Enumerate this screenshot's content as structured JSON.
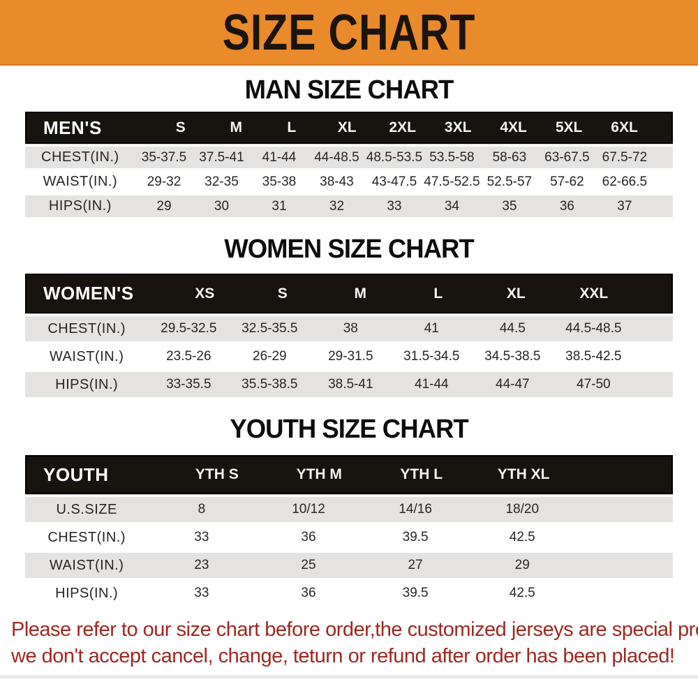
{
  "banner": {
    "title": "SIZE CHART"
  },
  "men": {
    "heading": "MAN SIZE CHART",
    "header_label": "MEN'S",
    "columns": [
      "S",
      "M",
      "L",
      "XL",
      "2XL",
      "3XL",
      "4XL",
      "5XL",
      "6XL"
    ],
    "rows": [
      {
        "label": "CHEST(IN.)",
        "values": [
          "35-37.5",
          "37.5-41",
          "41-44",
          "44-48.5",
          "48.5-53.5",
          "53.5-58",
          "58-63",
          "63-67.5",
          "67.5-72"
        ]
      },
      {
        "label": "WAIST(IN.)",
        "values": [
          "29-32",
          "32-35",
          "35-38",
          "38-43",
          "43-47.5",
          "47.5-52.5",
          "52.5-57",
          "57-62",
          "62-66.5"
        ]
      },
      {
        "label": "HIPS(IN.)",
        "values": [
          "29",
          "30",
          "31",
          "32",
          "33",
          "34",
          "35",
          "36",
          "37"
        ]
      }
    ]
  },
  "women": {
    "heading": "WOMEN SIZE CHART",
    "header_label": "WOMEN'S",
    "columns": [
      "XS",
      "S",
      "M",
      "L",
      "XL",
      "XXL"
    ],
    "rows": [
      {
        "label": "CHEST(IN.)",
        "values": [
          "29.5-32.5",
          "32.5-35.5",
          "38",
          "41",
          "44.5",
          "44.5-48.5"
        ]
      },
      {
        "label": "WAIST(IN.)",
        "values": [
          "23.5-26",
          "26-29",
          "29-31.5",
          "31.5-34.5",
          "34.5-38.5",
          "38.5-42.5"
        ]
      },
      {
        "label": "HIPS(IN.)",
        "values": [
          "33-35.5",
          "35.5-38.5",
          "38.5-41",
          "41-44",
          "44-47",
          "47-50"
        ]
      }
    ]
  },
  "youth": {
    "heading": "YOUTH SIZE CHART",
    "header_label": "YOUTH",
    "columns": [
      "YTH S",
      "YTH M",
      "YTH L",
      "YTH XL"
    ],
    "rows": [
      {
        "label": "U.S.SIZE",
        "values": [
          "8",
          "10/12",
          "14/16",
          "18/20"
        ]
      },
      {
        "label": "CHEST(IN.)",
        "values": [
          "33",
          "36",
          "39.5",
          "42.5"
        ]
      },
      {
        "label": "WAIST(IN.)",
        "values": [
          "23",
          "25",
          "27",
          "29"
        ]
      },
      {
        "label": "HIPS(IN.)",
        "values": [
          "33",
          "36",
          "39.5",
          "42.5"
        ]
      }
    ]
  },
  "footer": {
    "line1": "Please refer to our size chart before order,the customized jerseys are special products,",
    "line2": "we don't accept cancel, change, teturn or refund after order has been placed!"
  },
  "colors": {
    "banner_bg": "#E98A2B",
    "table_header_bg": "#17130F",
    "row_alt_bg": "#E4E3E1",
    "footer_text": "#9E2722"
  }
}
